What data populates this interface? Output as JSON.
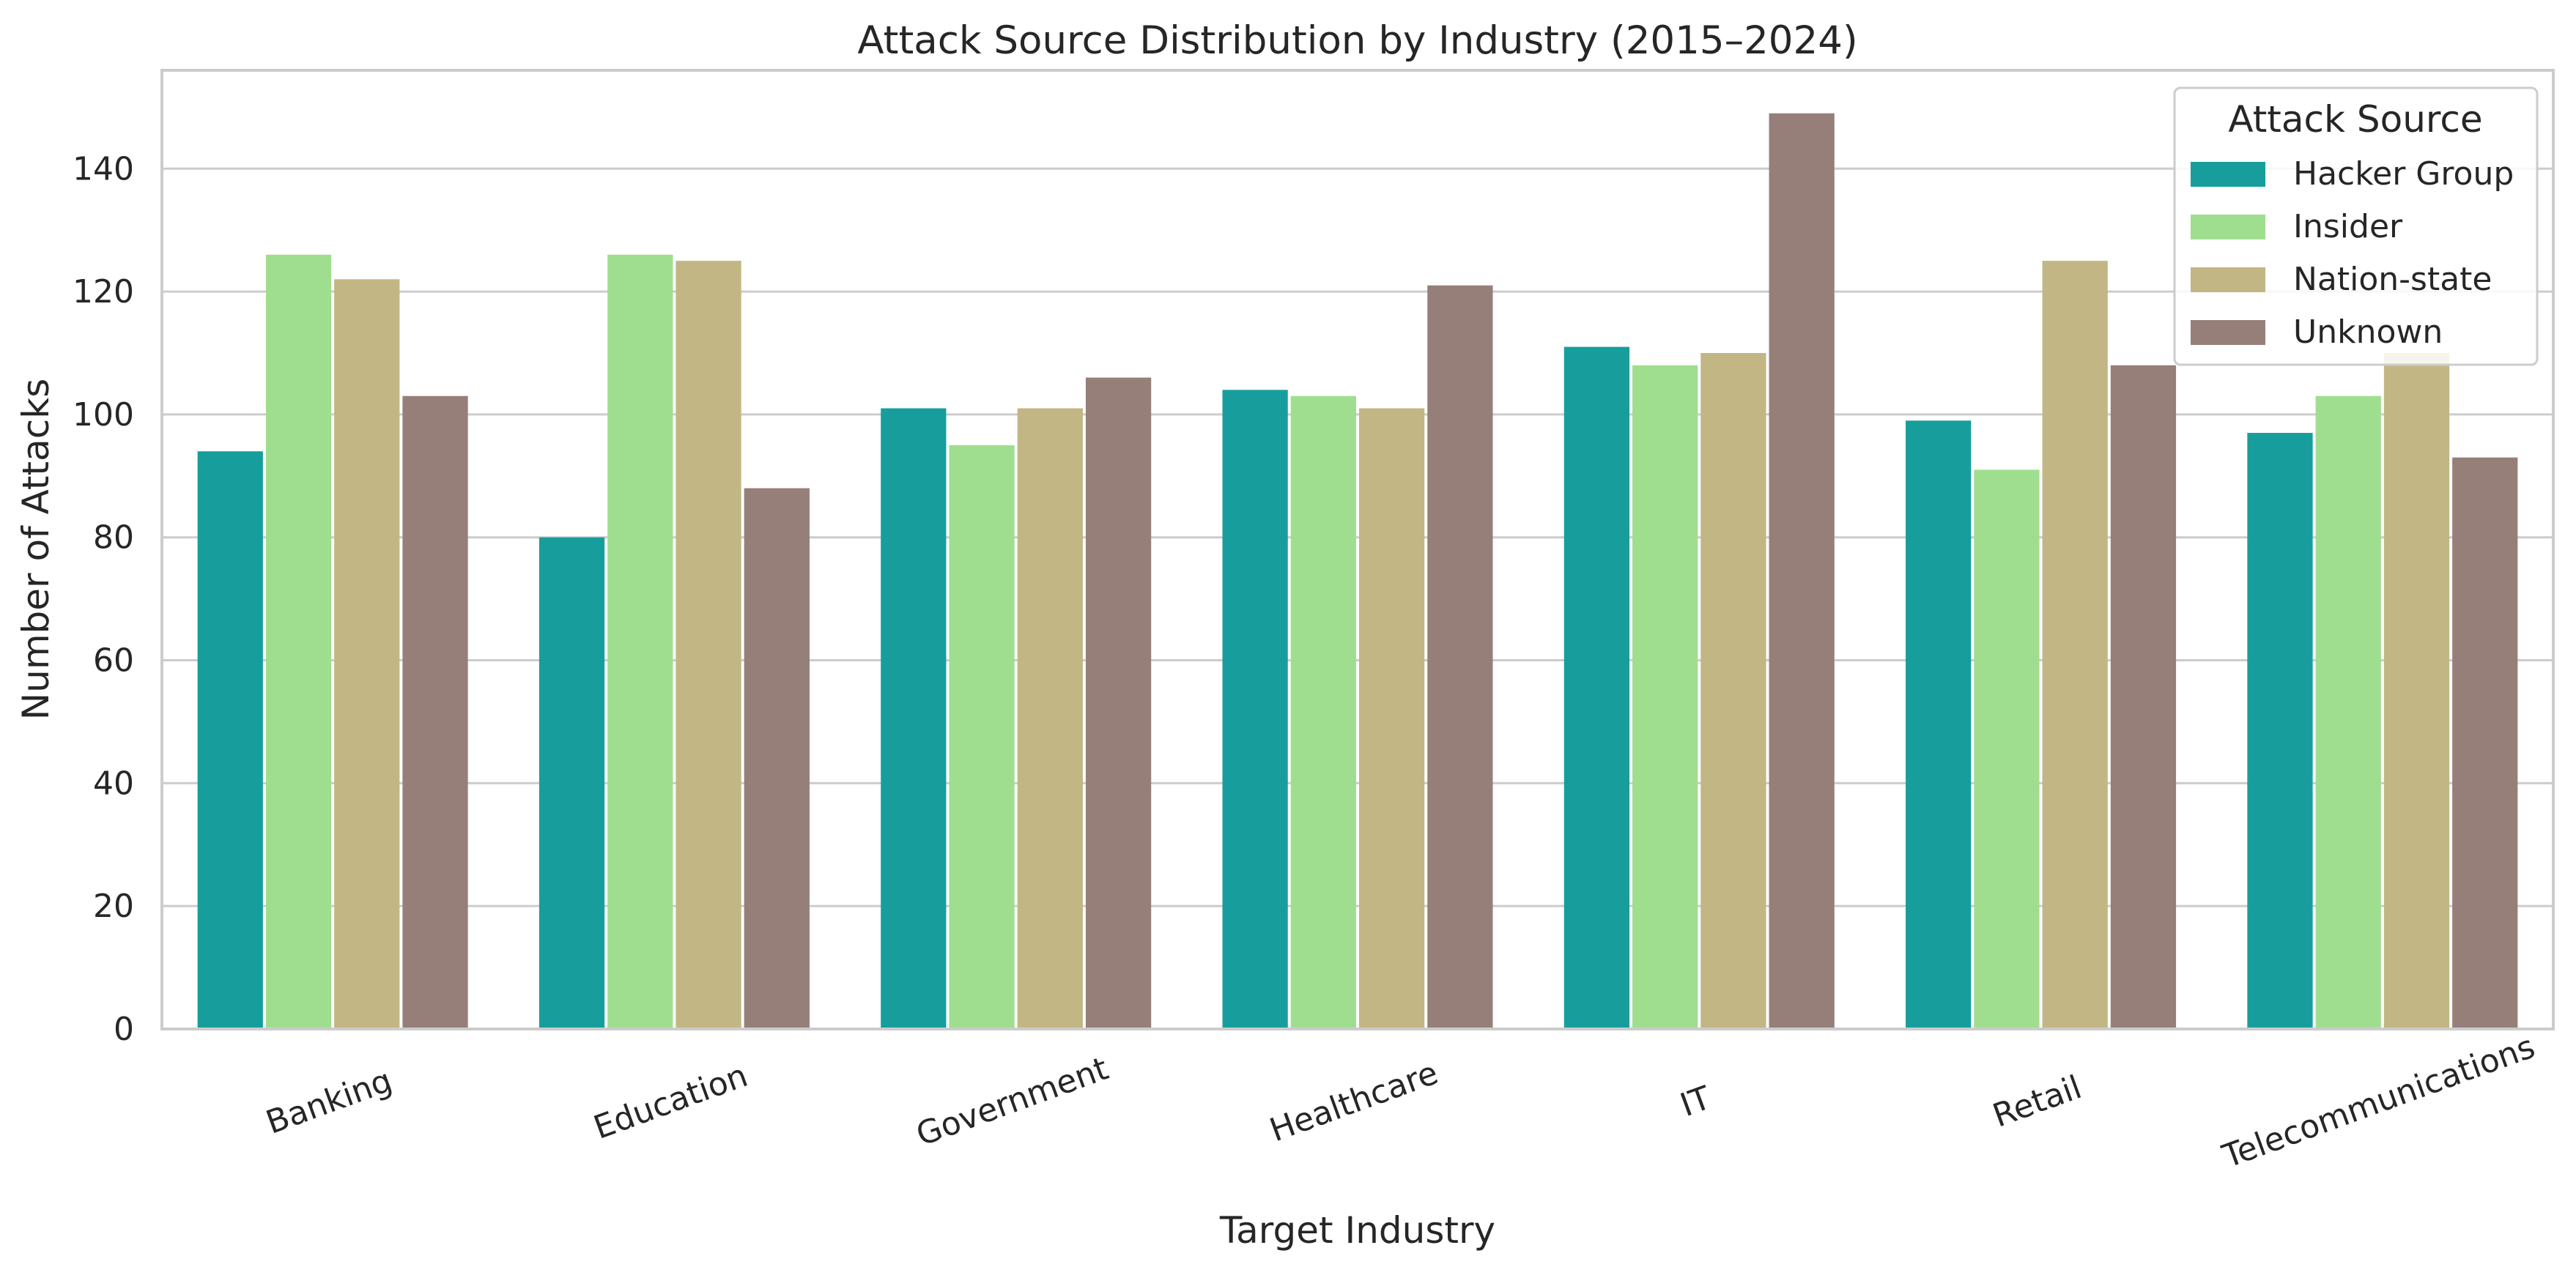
{
  "chart_data": {
    "type": "bar",
    "title": "Attack Source Distribution by Industry (2015–2024)",
    "xlabel": "Target Industry",
    "ylabel": "Number of Attacks",
    "ylim": [
      0,
      156
    ],
    "yticks": [
      0,
      20,
      40,
      60,
      80,
      100,
      120,
      140
    ],
    "grid": "horizontal",
    "categories": [
      "Banking",
      "Education",
      "Government",
      "Healthcare",
      "IT",
      "Retail",
      "Telecommunications"
    ],
    "legend": {
      "title": "Attack Source",
      "placement": "top-right"
    },
    "series": [
      {
        "name": "Hacker Group",
        "color": "#179e9c",
        "values": [
          94,
          80,
          101,
          104,
          111,
          99,
          97
        ]
      },
      {
        "name": "Insider",
        "color": "#a0de8f",
        "values": [
          126,
          126,
          95,
          103,
          108,
          91,
          103
        ]
      },
      {
        "name": "Nation-state",
        "color": "#c2b684",
        "values": [
          122,
          125,
          101,
          101,
          110,
          125,
          110
        ]
      },
      {
        "name": "Unknown",
        "color": "#967f79",
        "values": [
          103,
          88,
          106,
          121,
          149,
          108,
          93
        ]
      }
    ]
  }
}
